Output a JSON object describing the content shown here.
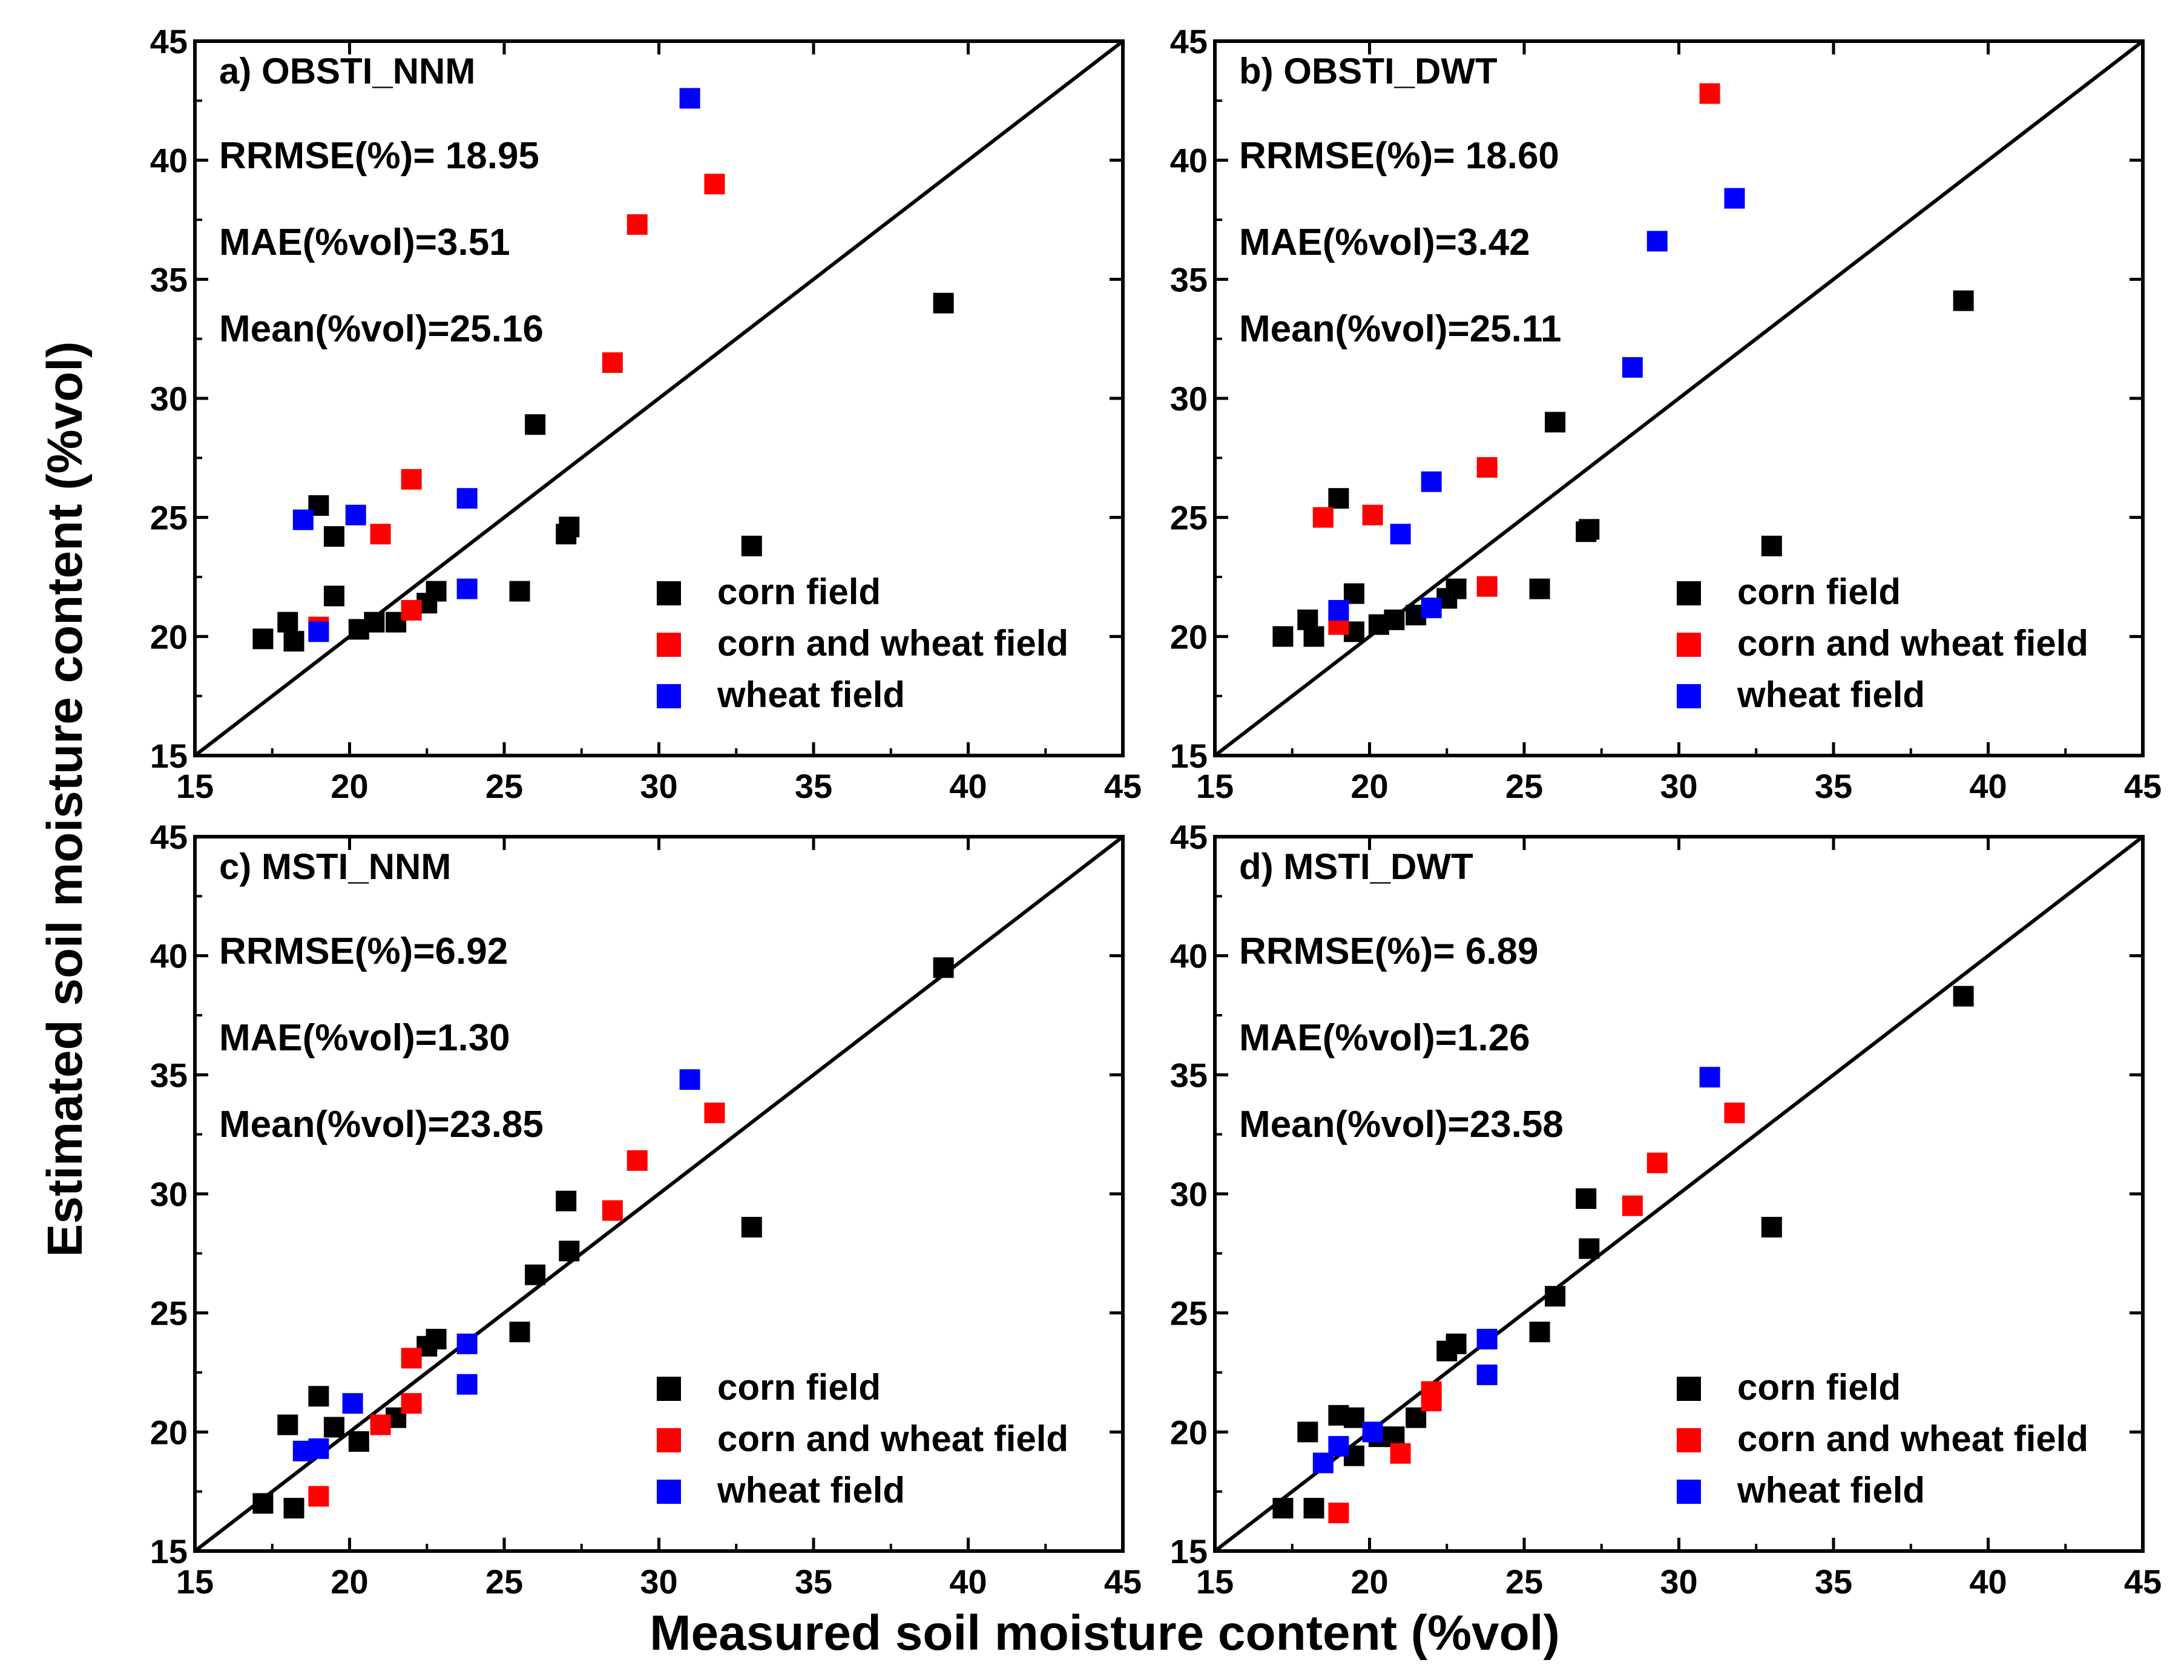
{
  "figure": {
    "xlabel": "Measured soil moisture content (%vol)",
    "ylabel": "Estimated soil moisture content (%vol)"
  },
  "legend_labels": [
    "corn field",
    "corn and wheat field",
    "wheat field"
  ],
  "colors": {
    "corn": "#000000",
    "mixed": "#ff0000",
    "wheat": "#0000ff"
  },
  "chart_data": [
    {
      "type": "scatter",
      "title": "a) OBSTI_NNM",
      "stats": [
        "RRMSE(%)= 18.95",
        "MAE(%vol)=3.51",
        "Mean(%vol)=25.16"
      ],
      "xlim": [
        15,
        45
      ],
      "ylim": [
        15,
        45
      ],
      "ticks": [
        "15",
        "20",
        "25",
        "30",
        "35",
        "40",
        "45"
      ],
      "reference_line": "1:1",
      "legend_position": "bottom-right",
      "series": [
        {
          "name": "corn field",
          "color": "#000000",
          "points": [
            [
              17.2,
              19.9
            ],
            [
              18.0,
              20.6
            ],
            [
              18.2,
              19.8
            ],
            [
              19.0,
              25.5
            ],
            [
              19.5,
              24.2
            ],
            [
              19.5,
              21.7
            ],
            [
              20.3,
              20.3
            ],
            [
              20.8,
              20.6
            ],
            [
              21.5,
              20.6
            ],
            [
              22.5,
              21.4
            ],
            [
              22.8,
              21.9
            ],
            [
              25.5,
              21.9
            ],
            [
              26.0,
              28.9
            ],
            [
              27.0,
              24.3
            ],
            [
              27.1,
              24.6
            ],
            [
              33.0,
              23.8
            ],
            [
              39.2,
              34.0
            ]
          ]
        },
        {
          "name": "corn and wheat field",
          "color": "#ff0000",
          "points": [
            [
              19.0,
              20.4
            ],
            [
              21.0,
              24.3
            ],
            [
              22.0,
              21.1
            ],
            [
              22.0,
              26.6
            ],
            [
              28.5,
              31.5
            ],
            [
              29.3,
              37.3
            ],
            [
              31.8,
              39.0
            ]
          ]
        },
        {
          "name": "wheat field",
          "color": "#0000ff",
          "points": [
            [
              18.5,
              24.9
            ],
            [
              19.0,
              20.2
            ],
            [
              20.2,
              25.1
            ],
            [
              23.8,
              25.8
            ],
            [
              23.8,
              22.0
            ],
            [
              31.0,
              42.6
            ]
          ]
        }
      ]
    },
    {
      "type": "scatter",
      "title": "b) OBSTI_DWT",
      "stats": [
        "RRMSE(%)= 18.60",
        "MAE(%vol)=3.42",
        "Mean(%vol)=25.11"
      ],
      "xlim": [
        15,
        45
      ],
      "ylim": [
        15,
        45
      ],
      "ticks": [
        "15",
        "20",
        "25",
        "30",
        "35",
        "40",
        "45"
      ],
      "reference_line": "1:1",
      "legend_position": "bottom-right",
      "series": [
        {
          "name": "corn field",
          "color": "#000000",
          "points": [
            [
              17.2,
              20.0
            ],
            [
              18.0,
              20.7
            ],
            [
              18.2,
              20.0
            ],
            [
              19.0,
              25.8
            ],
            [
              19.5,
              21.8
            ],
            [
              19.5,
              20.2
            ],
            [
              20.3,
              20.5
            ],
            [
              20.8,
              20.7
            ],
            [
              21.5,
              20.9
            ],
            [
              22.5,
              21.6
            ],
            [
              22.8,
              22.0
            ],
            [
              25.5,
              22.0
            ],
            [
              26.0,
              29.0
            ],
            [
              27.0,
              24.4
            ],
            [
              27.1,
              24.5
            ],
            [
              33.0,
              23.8
            ],
            [
              39.2,
              34.1
            ]
          ]
        },
        {
          "name": "corn and wheat field",
          "color": "#ff0000",
          "points": [
            [
              18.5,
              25.0
            ],
            [
              19.0,
              20.5
            ],
            [
              20.1,
              25.1
            ],
            [
              23.8,
              27.1
            ],
            [
              23.8,
              22.1
            ],
            [
              31.0,
              42.8
            ]
          ]
        },
        {
          "name": "wheat field",
          "color": "#0000ff",
          "points": [
            [
              19.0,
              21.1
            ],
            [
              21.0,
              24.3
            ],
            [
              22.0,
              26.5
            ],
            [
              22.0,
              21.2
            ],
            [
              28.5,
              31.3
            ],
            [
              29.3,
              36.6
            ],
            [
              31.8,
              38.4
            ]
          ]
        }
      ]
    },
    {
      "type": "scatter",
      "title": "c) MSTI_NNM",
      "stats": [
        "RRMSE(%)=6.92",
        "MAE(%vol)=1.30",
        "Mean(%vol)=23.85"
      ],
      "xlim": [
        15,
        45
      ],
      "ylim": [
        15,
        45
      ],
      "ticks": [
        "15",
        "20",
        "25",
        "30",
        "35",
        "40",
        "45"
      ],
      "reference_line": "1:1",
      "legend_position": "bottom-right",
      "series": [
        {
          "name": "corn field",
          "color": "#000000",
          "points": [
            [
              17.2,
              17.0
            ],
            [
              18.0,
              20.3
            ],
            [
              18.2,
              16.8
            ],
            [
              19.0,
              21.5
            ],
            [
              19.5,
              20.2
            ],
            [
              20.3,
              19.6
            ],
            [
              21.5,
              20.6
            ],
            [
              22.5,
              23.6
            ],
            [
              22.8,
              23.9
            ],
            [
              25.5,
              24.2
            ],
            [
              26.0,
              26.6
            ],
            [
              27.0,
              29.7
            ],
            [
              27.1,
              27.6
            ],
            [
              33.0,
              28.6
            ],
            [
              39.2,
              39.5
            ]
          ]
        },
        {
          "name": "corn and wheat field",
          "color": "#ff0000",
          "points": [
            [
              19.0,
              17.3
            ],
            [
              21.0,
              20.3
            ],
            [
              22.0,
              21.2
            ],
            [
              22.0,
              23.1
            ],
            [
              28.5,
              29.3
            ],
            [
              29.3,
              31.4
            ],
            [
              31.8,
              33.4
            ]
          ]
        },
        {
          "name": "wheat field",
          "color": "#0000ff",
          "points": [
            [
              18.5,
              19.2
            ],
            [
              19.0,
              19.3
            ],
            [
              20.1,
              21.2
            ],
            [
              23.8,
              23.7
            ],
            [
              23.8,
              22.0
            ],
            [
              31.0,
              34.8
            ]
          ]
        }
      ]
    },
    {
      "type": "scatter",
      "title": "d) MSTI_DWT",
      "stats": [
        "RRMSE(%)= 6.89",
        "MAE(%vol)=1.26",
        "Mean(%vol)=23.58"
      ],
      "xlim": [
        15,
        45
      ],
      "ylim": [
        15,
        45
      ],
      "ticks": [
        "15",
        "20",
        "25",
        "30",
        "35",
        "40",
        "45"
      ],
      "reference_line": "1:1",
      "legend_position": "bottom-right",
      "series": [
        {
          "name": "corn field",
          "color": "#000000",
          "points": [
            [
              17.2,
              16.8
            ],
            [
              18.0,
              20.0
            ],
            [
              18.2,
              16.8
            ],
            [
              19.0,
              20.7
            ],
            [
              19.5,
              20.6
            ],
            [
              19.5,
              19.0
            ],
            [
              20.3,
              19.8
            ],
            [
              20.8,
              19.8
            ],
            [
              21.5,
              20.6
            ],
            [
              22.5,
              23.4
            ],
            [
              22.8,
              23.7
            ],
            [
              25.5,
              24.2
            ],
            [
              26.0,
              25.7
            ],
            [
              27.0,
              29.8
            ],
            [
              27.1,
              27.7
            ],
            [
              33.0,
              28.6
            ],
            [
              39.2,
              38.3
            ]
          ]
        },
        {
          "name": "corn and wheat field",
          "color": "#ff0000",
          "points": [
            [
              19.0,
              16.6
            ],
            [
              21.0,
              19.1
            ],
            [
              22.0,
              21.3
            ],
            [
              22.0,
              21.7
            ],
            [
              28.5,
              29.5
            ],
            [
              29.3,
              31.3
            ],
            [
              31.8,
              33.4
            ]
          ]
        },
        {
          "name": "wheat field",
          "color": "#0000ff",
          "points": [
            [
              18.5,
              18.7
            ],
            [
              19.0,
              19.4
            ],
            [
              20.1,
              20.0
            ],
            [
              23.8,
              23.9
            ],
            [
              23.8,
              22.4
            ],
            [
              31.0,
              34.9
            ]
          ]
        }
      ]
    }
  ]
}
